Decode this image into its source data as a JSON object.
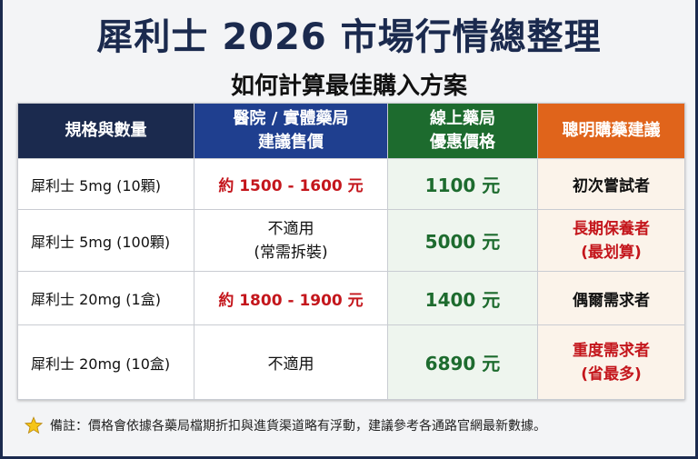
{
  "header": {
    "title": "犀利士 2026 市場行情總整理",
    "subtitle": "如何計算最佳購入方案"
  },
  "table": {
    "columns": [
      "規格與數量",
      [
        "醫院 / 實體藥局",
        "建議售價"
      ],
      [
        "線上藥局",
        "優惠價格"
      ],
      "聰明購藥建議"
    ],
    "rows": [
      [
        "犀利士 5mg (10顆)",
        "約 1500 - 1600 元",
        "1100 元",
        "初次嘗試者"
      ],
      [
        "犀利士 5mg (100顆)",
        [
          "不適用",
          "(常需拆裝)"
        ],
        "5000 元",
        [
          "長期保養者",
          "(最划算)"
        ]
      ],
      [
        "犀利士 20mg (1盒)",
        "約 1800 - 1900 元",
        "1400 元",
        "偶爾需求者"
      ],
      [
        "犀利士 20mg (10盒)",
        "不適用",
        "6890 元",
        [
          "重度需求者",
          "(省最多)"
        ]
      ]
    ]
  },
  "footnote": "備註：價格會依據各藥局檔期折扣與進貨渠道略有浮動，建議參考各通路官網最新數據。"
}
